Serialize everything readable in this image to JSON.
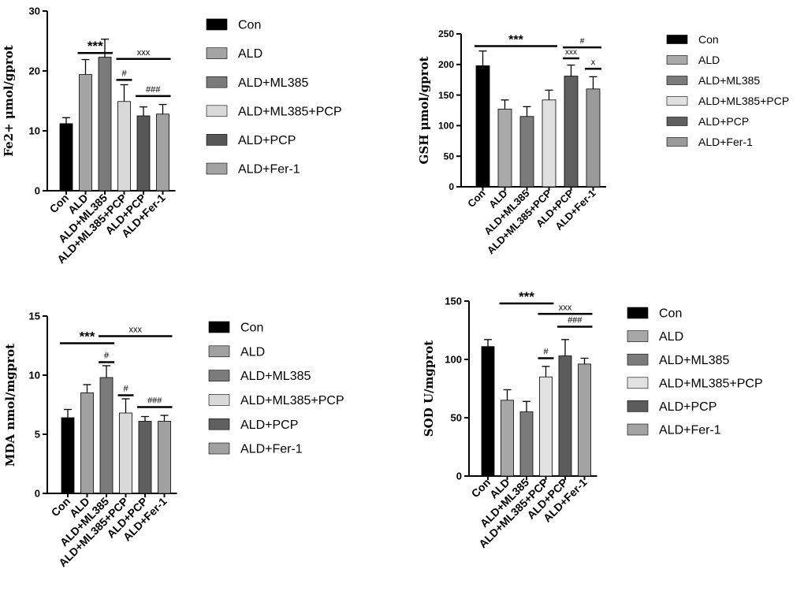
{
  "chart_data": [
    {
      "type": "bar",
      "ylabel": "Fe2+ μmol/gprot",
      "ylim": [
        0,
        30
      ],
      "yticks": [
        0,
        10,
        20,
        30
      ],
      "categories": [
        "Con",
        "ALD",
        "ALD+ML385",
        "ALD+ML385+PCP",
        "ALD+PCP",
        "ALD+Fer-1"
      ],
      "values": [
        11.2,
        19.4,
        22.3,
        14.9,
        12.5,
        12.8
      ],
      "errors": [
        1.0,
        2.5,
        3.0,
        2.8,
        1.5,
        1.6
      ],
      "colors": [
        "#000000",
        "#a4a4a4",
        "#7b7b7b",
        "#d9d9d9",
        "#575757",
        "#a2a2a2"
      ],
      "legend": [
        "Con",
        "ALD",
        "ALD+ML385",
        "ALD+ML385+PCP",
        "ALD+PCP",
        "ALD+Fer-1"
      ],
      "annotations": [
        {
          "text": "***",
          "from": 1,
          "to": 2,
          "y": 23
        },
        {
          "text": "xxx",
          "from": 3,
          "to": 5,
          "y": 22
        },
        {
          "text": "#",
          "from": 3,
          "to": 3,
          "y": 18.5
        },
        {
          "text": "###",
          "from": 4,
          "to": 5,
          "y": 15.8
        }
      ]
    },
    {
      "type": "bar",
      "ylabel": "GSH μmol/gprot",
      "ylim": [
        0,
        250
      ],
      "yticks": [
        0,
        50,
        100,
        150,
        200,
        250
      ],
      "categories": [
        "Con",
        "ALD",
        "ALD+ML385",
        "ALD+ML385+PCP",
        "ALD+PCP",
        "ALD+Fer-1"
      ],
      "values": [
        198,
        127,
        115,
        142,
        181,
        160
      ],
      "errors": [
        24,
        15,
        16,
        16,
        18,
        20
      ],
      "colors": [
        "#000000",
        "#a9a9a9",
        "#7b7b7b",
        "#e0e0e0",
        "#5f5f5f",
        "#9a9a9a"
      ],
      "legend": [
        "Con",
        "ALD",
        "ALD+ML385",
        "ALD+ML385+PCP",
        "ALD+PCP",
        "ALD+Fer-1"
      ],
      "annotations": [
        {
          "text": "***",
          "from": 0,
          "to": 3,
          "y": 230
        },
        {
          "text": "#",
          "from": 4,
          "to": 5,
          "y": 228
        },
        {
          "text": "xxx",
          "from": 4,
          "to": 4,
          "y": 210
        },
        {
          "text": "x",
          "from": 5,
          "to": 5,
          "y": 193
        }
      ]
    },
    {
      "type": "bar",
      "ylabel": "MDA nmol/mgprot",
      "ylim": [
        0,
        15
      ],
      "yticks": [
        0,
        5,
        10,
        15
      ],
      "categories": [
        "Con",
        "ALD",
        "ALD+ML385",
        "ALD+ML385+PCP",
        "ALD+PCP",
        "ALD+Fer-1"
      ],
      "values": [
        6.4,
        8.5,
        9.8,
        6.8,
        6.1,
        6.1
      ],
      "errors": [
        0.7,
        0.7,
        1.0,
        1.2,
        0.4,
        0.5
      ],
      "colors": [
        "#000000",
        "#a0a0a0",
        "#7b7b7b",
        "#d9d9d9",
        "#5f5f5f",
        "#a0a0a0"
      ],
      "legend": [
        "Con",
        "ALD",
        "ALD+ML385",
        "ALD+ML385+PCP",
        "ALD+PCP",
        "ALD+Fer-1"
      ],
      "annotations": [
        {
          "text": "***",
          "from": 0,
          "to": 2,
          "y": 12.7
        },
        {
          "text": "xxx",
          "from": 2,
          "to": 5,
          "y": 13.3
        },
        {
          "text": "#",
          "from": 2,
          "to": 2,
          "y": 11.1
        },
        {
          "text": "#",
          "from": 3,
          "to": 3,
          "y": 8.3
        },
        {
          "text": "###",
          "from": 4,
          "to": 5,
          "y": 7.3
        }
      ]
    },
    {
      "type": "bar",
      "ylabel": "SOD U/mgprot",
      "ylim": [
        0,
        150
      ],
      "yticks": [
        0,
        50,
        100,
        150
      ],
      "categories": [
        "Con",
        "ALD",
        "ALD+ML385",
        "ALD+ML385+PCP",
        "ALD+PCP",
        "ALD+Fer-1"
      ],
      "values": [
        111,
        65,
        55,
        85,
        103,
        96
      ],
      "errors": [
        6,
        9,
        9,
        9,
        14,
        5
      ],
      "colors": [
        "#000000",
        "#a7a7a7",
        "#7b7b7b",
        "#e2e2e2",
        "#5c5c5c",
        "#a3a3a3"
      ],
      "legend": [
        "Con",
        "ALD",
        "ALD+ML385",
        "ALD+ML385+PCP",
        "ALD+PCP",
        "ALD+Fer-1"
      ],
      "annotations": [
        {
          "text": "***",
          "from": 1,
          "to": 3,
          "y": 148
        },
        {
          "text": "xxx",
          "from": 3,
          "to": 5,
          "y": 139
        },
        {
          "text": "###",
          "from": 4,
          "to": 5,
          "y": 128
        },
        {
          "text": "#",
          "from": 3,
          "to": 3,
          "y": 101
        }
      ]
    }
  ]
}
